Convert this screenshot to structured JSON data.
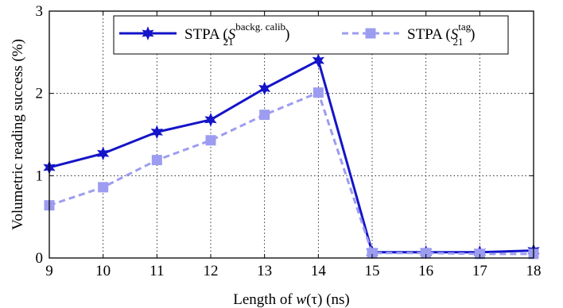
{
  "chart_data": {
    "type": "line",
    "xlabel": "Length of w(τ) (ns)",
    "xlabel_parts": {
      "prefix": "Length of ",
      "symbol": "w",
      "arg": "(τ)",
      "suffix": " (ns)"
    },
    "ylabel": "Volumetric reading success (%)",
    "x": [
      9,
      10,
      11,
      12,
      13,
      14,
      15,
      16,
      17,
      18
    ],
    "xlim": [
      9,
      18
    ],
    "ylim": [
      0,
      3
    ],
    "xticks": [
      "9",
      "10",
      "11",
      "12",
      "13",
      "14",
      "15",
      "16",
      "17",
      "18"
    ],
    "yticks": [
      "0",
      "1",
      "2",
      "3"
    ],
    "grid": true,
    "legend_position": "top",
    "series": [
      {
        "name": "STPA (S21 backg. calib)",
        "legend_prefix": "STPA (",
        "legend_symbol": "S",
        "legend_sub": "21",
        "legend_sup": "backg. calib",
        "legend_suffix": ")",
        "color": "#1414c8",
        "style": "solid",
        "marker": "star",
        "values": [
          1.1,
          1.27,
          1.53,
          1.68,
          2.06,
          2.4,
          0.07,
          0.07,
          0.07,
          0.09
        ]
      },
      {
        "name": "STPA (S21 tag)",
        "legend_prefix": "STPA (",
        "legend_symbol": "S",
        "legend_sub": "21",
        "legend_sup": "tag",
        "legend_suffix": ")",
        "color": "#9c9cf0",
        "style": "dashed",
        "marker": "square",
        "values": [
          0.64,
          0.86,
          1.19,
          1.43,
          1.74,
          2.01,
          0.06,
          0.06,
          0.05,
          0.05
        ]
      }
    ]
  }
}
